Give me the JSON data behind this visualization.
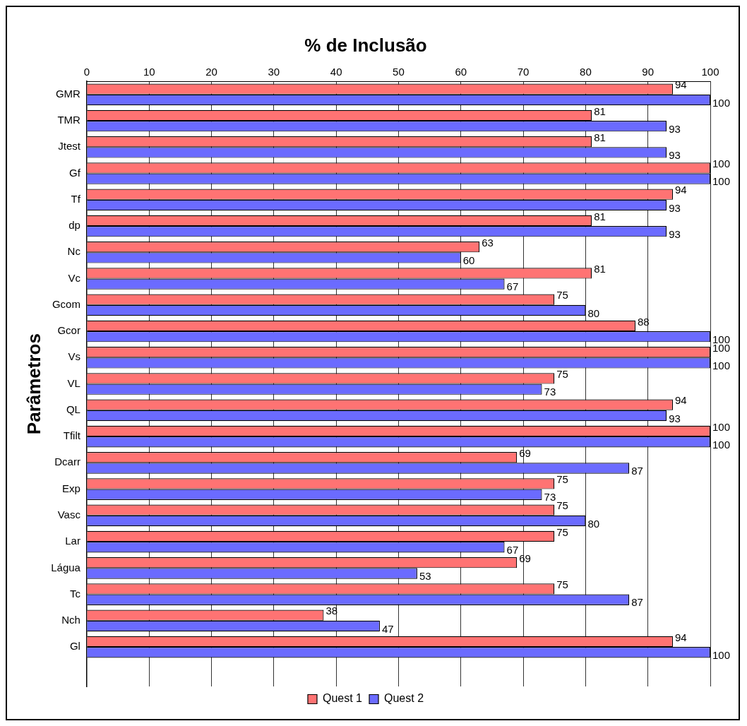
{
  "chart_data": {
    "type": "bar",
    "orientation": "horizontal",
    "title": "% de Inclusão",
    "ylabel": "Parâmetros",
    "categories": [
      "GMR",
      "TMR",
      "Jtest",
      "Gf",
      "Tf",
      "dp",
      "Nc",
      "Vc",
      "Gcom",
      "Gcor",
      "Vs",
      "VL",
      "QL",
      "Tfilt",
      "Dcarr",
      "Exp",
      "Vasc",
      "Lar",
      "Lágua",
      "Tc",
      "Nch",
      "Gl",
      null
    ],
    "series": [
      {
        "name": "Quest 1",
        "color": "#ff7373",
        "values": [
          94,
          81,
          81,
          100,
          94,
          81,
          63,
          81,
          75,
          88,
          100,
          75,
          94,
          100,
          69,
          75,
          75,
          75,
          69,
          75,
          38,
          94,
          null
        ]
      },
      {
        "name": "Quest 2",
        "color": "#6b6bff",
        "values": [
          100,
          93,
          93,
          100,
          93,
          93,
          60,
          67,
          80,
          100,
          100,
          73,
          93,
          100,
          87,
          73,
          80,
          67,
          53,
          87,
          47,
          100,
          null
        ]
      }
    ],
    "xlim": [
      0,
      100
    ],
    "xticks": [
      0,
      10,
      20,
      30,
      40,
      50,
      60,
      70,
      80,
      90,
      100
    ],
    "grid": "x",
    "legend": "bottom",
    "data_labels": true
  }
}
